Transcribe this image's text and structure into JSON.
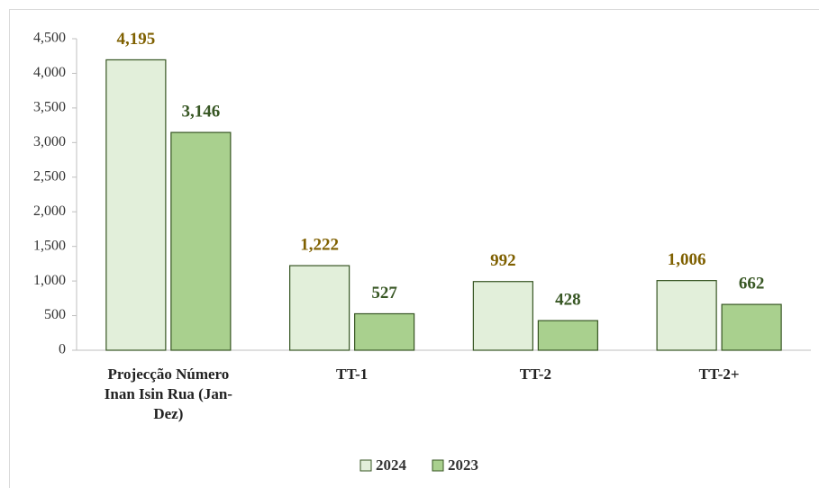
{
  "chart_data": {
    "type": "bar",
    "categories": [
      "Projecção Número Inan Isin Rua (Jan-Dez)",
      "TT-1",
      "TT-2",
      "TT-2+"
    ],
    "series": [
      {
        "name": "2024",
        "color": "#e2efda",
        "stroke": "#375623",
        "label_color": "#7f6000",
        "values": [
          4195,
          1222,
          992,
          1006
        ],
        "value_labels": [
          "4,195",
          "1,222",
          "992",
          "1,006"
        ]
      },
      {
        "name": "2023",
        "color": "#a9d08e",
        "stroke": "#375623",
        "label_color": "#375623",
        "values": [
          3146,
          527,
          428,
          662
        ],
        "value_labels": [
          "3,146",
          "527",
          "428",
          "662"
        ]
      }
    ],
    "ylim": [
      0,
      4500
    ],
    "yticks": [
      0,
      500,
      {
        "value": 1000,
        "label": "1,000"
      },
      {
        "value": 1500,
        "label": "1,500"
      },
      {
        "value": 2000,
        "label": "2,000"
      },
      {
        "value": 2500,
        "label": "2,500"
      },
      {
        "value": 3000,
        "label": "3,000"
      },
      {
        "value": 3500,
        "label": "3,500"
      },
      {
        "value": 4000,
        "label": "4,000"
      },
      {
        "value": 4500,
        "label": "4,500"
      }
    ],
    "grid": false,
    "legend": "bottom"
  }
}
